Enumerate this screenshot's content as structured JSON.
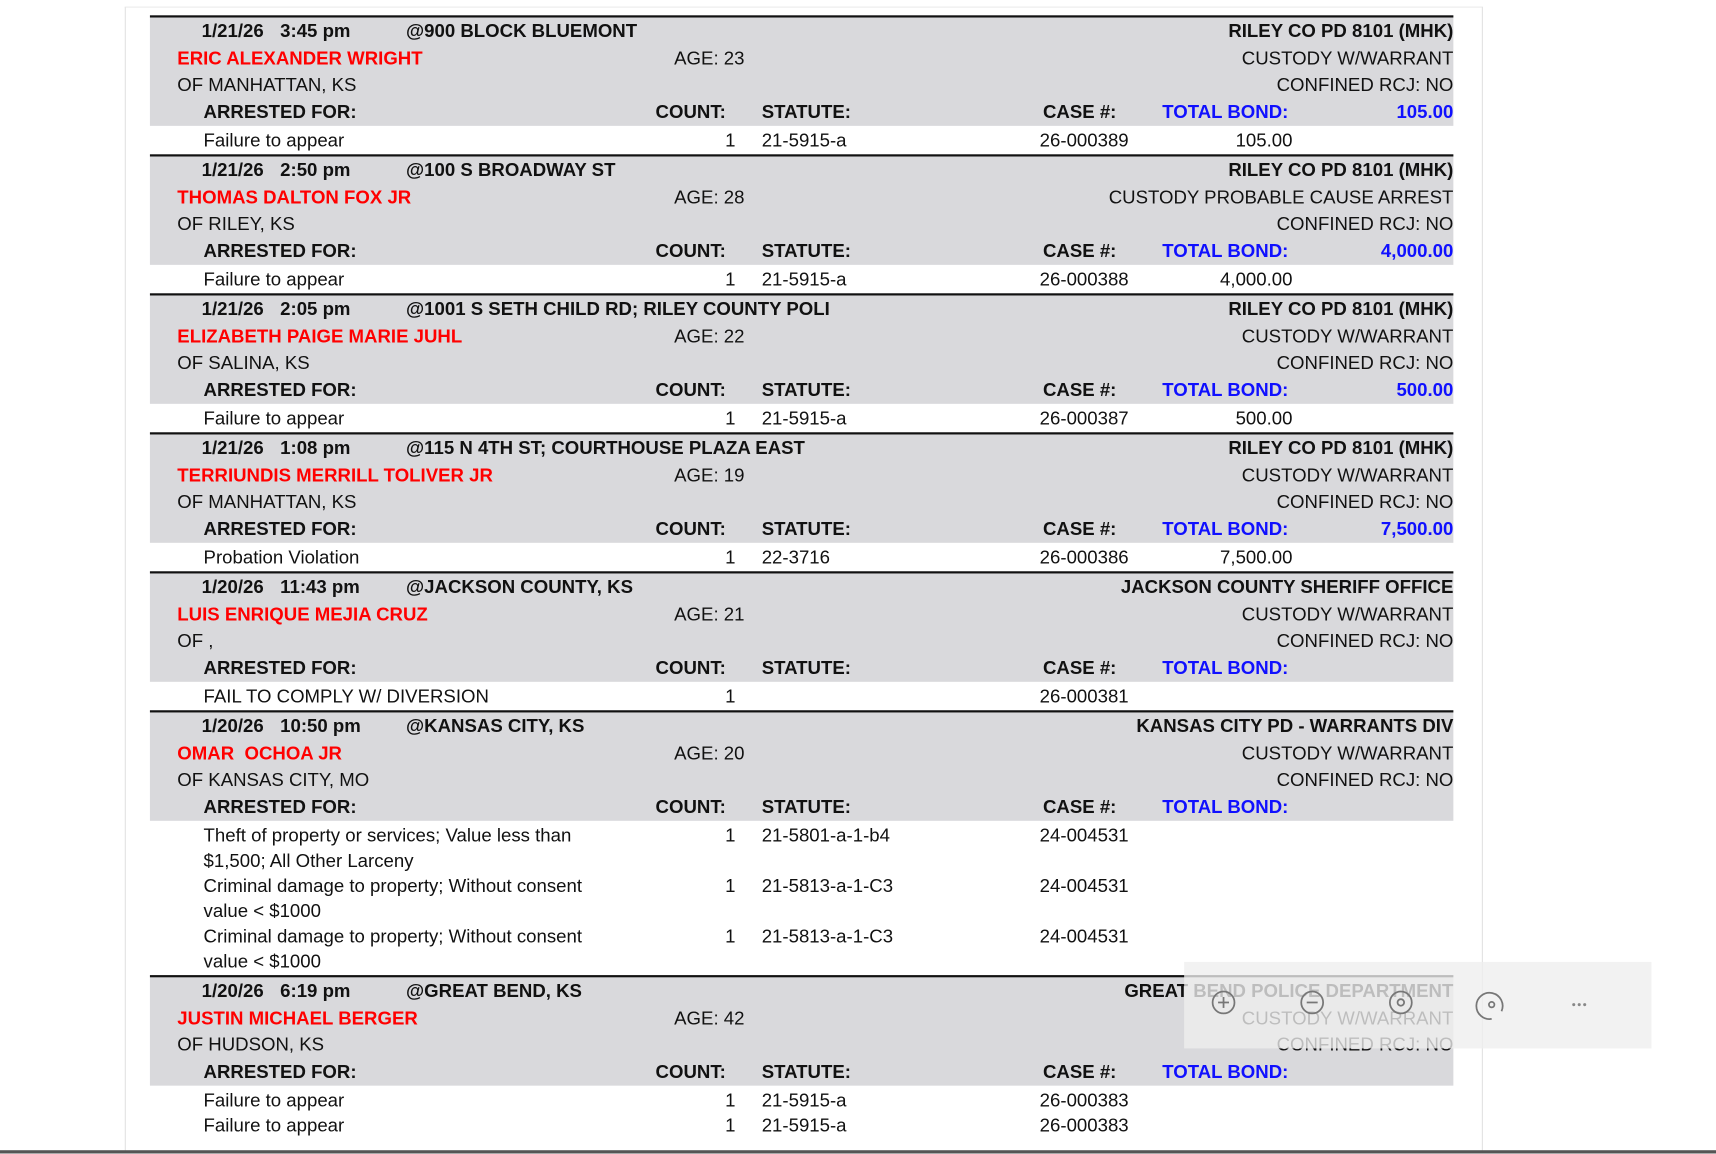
{
  "labels": {
    "arrested_for": "ARRESTED FOR:",
    "count": "COUNT:",
    "statute": "STATUTE:",
    "case": "CASE #:",
    "total_bond": "TOTAL BOND:"
  },
  "records": [
    {
      "date": "1/21/26",
      "time": "3:45 pm",
      "location": "@900 BLOCK BLUEMONT",
      "agency": "RILEY CO PD 8101 (MHK)",
      "name": "ERIC ALEXANDER WRIGHT",
      "age": "AGE: 23",
      "residence": "OF MANHATTAN, KS",
      "custody": "CUSTODY W/WARRANT",
      "confined": "CONFINED RCJ: NO",
      "total_bond": "105.00",
      "charges": [
        {
          "offense": "Failure to appear",
          "count": 1,
          "statute": "21-5915-a",
          "case": "26-000389",
          "bond": "105.00"
        }
      ]
    },
    {
      "date": "1/21/26",
      "time": "2:50 pm",
      "location": "@100 S BROADWAY ST",
      "agency": "RILEY CO PD 8101 (MHK)",
      "name": "THOMAS DALTON FOX JR",
      "age": "AGE: 28",
      "residence": "OF RILEY, KS",
      "custody": "CUSTODY PROBABLE CAUSE ARREST",
      "confined": "CONFINED RCJ: NO",
      "total_bond": "4,000.00",
      "charges": [
        {
          "offense": "Failure to appear",
          "count": 1,
          "statute": "21-5915-a",
          "case": "26-000388",
          "bond": "4,000.00"
        }
      ]
    },
    {
      "date": "1/21/26",
      "time": "2:05 pm",
      "location": "@1001 S SETH CHILD RD; RILEY COUNTY POLI",
      "agency": "RILEY CO PD 8101 (MHK)",
      "name": "ELIZABETH PAIGE MARIE JUHL",
      "age": "AGE: 22",
      "residence": "OF SALINA, KS",
      "custody": "CUSTODY W/WARRANT",
      "confined": "CONFINED RCJ: NO",
      "total_bond": "500.00",
      "charges": [
        {
          "offense": "Failure to appear",
          "count": 1,
          "statute": "21-5915-a",
          "case": "26-000387",
          "bond": "500.00"
        }
      ]
    },
    {
      "date": "1/21/26",
      "time": "1:08 pm",
      "location": "@115 N 4TH ST; COURTHOUSE PLAZA EAST",
      "agency": "RILEY CO PD 8101 (MHK)",
      "name": "TERRIUNDIS MERRILL TOLIVER JR",
      "age": "AGE: 19",
      "residence": "OF MANHATTAN, KS",
      "custody": "CUSTODY W/WARRANT",
      "confined": "CONFINED RCJ: NO",
      "total_bond": "7,500.00",
      "charges": [
        {
          "offense": "Probation Violation",
          "count": 1,
          "statute": "22-3716",
          "case": "26-000386",
          "bond": "7,500.00"
        }
      ]
    },
    {
      "date": "1/20/26",
      "time": "11:43 pm",
      "location": "@JACKSON COUNTY, KS",
      "agency": "JACKSON COUNTY SHERIFF OFFICE",
      "name": "LUIS ENRIQUE MEJIA CRUZ",
      "age": "AGE: 21",
      "residence": "OF ,",
      "custody": "CUSTODY W/WARRANT",
      "confined": "CONFINED RCJ: NO",
      "charges": [
        {
          "offense": "FAIL TO COMPLY W/ DIVERSION",
          "count": 1,
          "case": "26-000381"
        }
      ]
    },
    {
      "date": "1/20/26",
      "time": "10:50 pm",
      "location": "@KANSAS CITY, KS",
      "agency": "KANSAS CITY PD - WARRANTS DIV",
      "name": "OMAR  OCHOA JR",
      "age": "AGE: 20",
      "residence": "OF KANSAS CITY, MO",
      "custody": "CUSTODY W/WARRANT",
      "confined": "CONFINED RCJ: NO",
      "charges": [
        {
          "offense": "Theft of property or services; Value less than $1,500; All Other Larceny",
          "count": 1,
          "statute": "21-5801-a-1-b4",
          "case": "24-004531"
        },
        {
          "offense": "Criminal damage to property; Without consent value < $1000",
          "count": 1,
          "statute": "21-5813-a-1-C3",
          "case": "24-004531"
        },
        {
          "offense": "Criminal damage to property; Without consent value < $1000",
          "count": 1,
          "statute": "21-5813-a-1-C3",
          "case": "24-004531"
        }
      ]
    },
    {
      "date": "1/20/26",
      "time": "6:19 pm",
      "location": "@GREAT BEND, KS",
      "agency": "GREAT BEND POLICE DEPARTMENT",
      "name": "JUSTIN MICHAEL BERGER",
      "age": "AGE: 42",
      "residence": "OF HUDSON, KS",
      "custody": "CUSTODY W/WARRANT",
      "confined": "CONFINED RCJ: NO",
      "charges": [
        {
          "offense": "Failure to appear",
          "count": 1,
          "statute": "21-5915-a",
          "case": "26-000383"
        },
        {
          "offense": "Failure to appear",
          "count": 1,
          "statute": "21-5915-a",
          "case": "26-000383"
        }
      ]
    }
  ]
}
